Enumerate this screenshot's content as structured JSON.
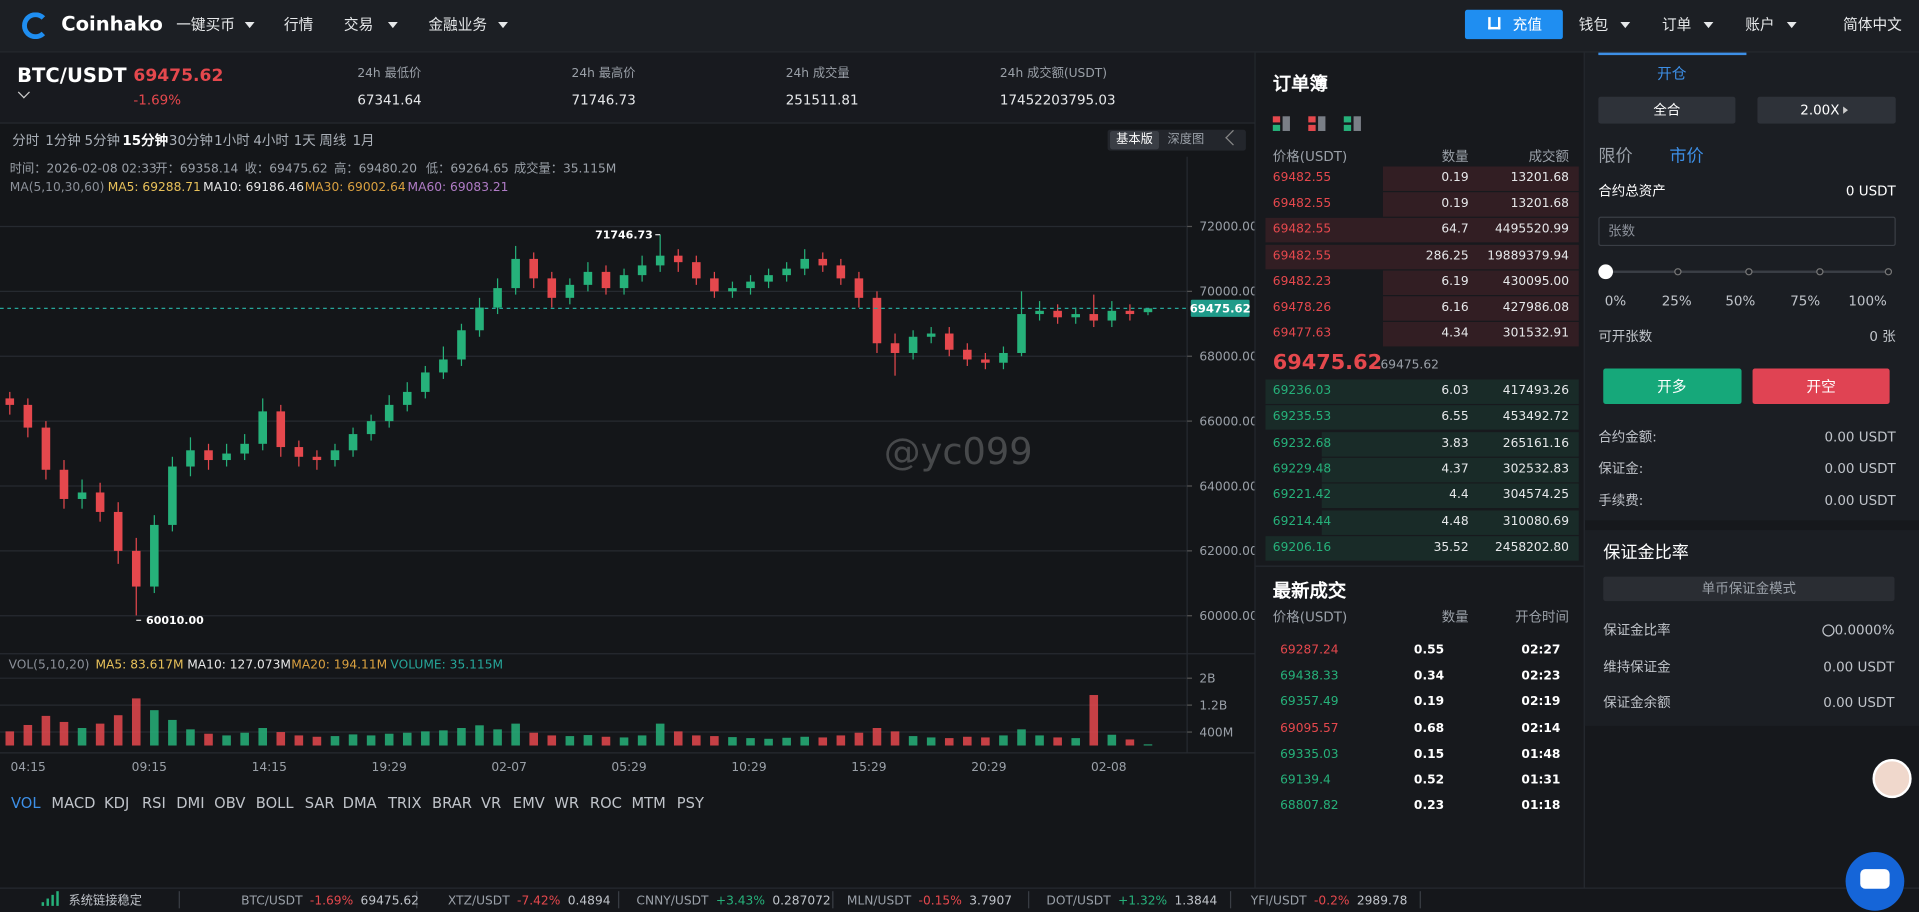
{
  "nav": {
    "brand": "Coinhako",
    "items": [
      "一键买币",
      "行情",
      "交易",
      "金融业务"
    ],
    "deposit": "充值",
    "right": [
      "钱包",
      "订单",
      "账户"
    ],
    "lang": "简体中文"
  },
  "ticker": {
    "pair": "BTC/USDT",
    "price": "69475.62",
    "change": "-1.69%",
    "stats": [
      {
        "label": "24h 最低价",
        "value": "67341.64"
      },
      {
        "label": "24h 最高价",
        "value": "71746.73"
      },
      {
        "label": "24h 成交量",
        "value": "251511.81"
      },
      {
        "label": "24h 成交额(USDT)",
        "value": "17452203795.03"
      }
    ]
  },
  "periods": [
    "分时",
    "1分钟",
    "5分钟",
    "15分钟",
    "30分钟",
    "1小时",
    "4小时",
    "1天",
    "周线",
    "1月"
  ],
  "active_period": 3,
  "views": [
    "基本版",
    "深度图"
  ],
  "info": [
    "时间：2026-02-08 02:33",
    "开：69358.14",
    "收：69475.62",
    "高：69480.20",
    "低：69264.65",
    "成交量：35.115M"
  ],
  "ma_legend": [
    {
      "text": "MA(5,10,30,60)",
      "color": "#8b9099"
    },
    {
      "text": "MA5: 69288.71",
      "color": "#e8c15a"
    },
    {
      "text": "MA10: 69186.46",
      "color": "#e8e8e8"
    },
    {
      "text": "MA30: 69002.64",
      "color": "#d9a040"
    },
    {
      "text": "MA60: 69083.21",
      "color": "#b07cc6"
    }
  ],
  "vol_legend": [
    {
      "text": "VOL(5,10,20)",
      "color": "#8b9099"
    },
    {
      "text": "MA5: 83.617M",
      "color": "#e8c15a"
    },
    {
      "text": "MA10: 127.073M",
      "color": "#e8e8e8"
    },
    {
      "text": "MA20: 194.11M",
      "color": "#d9a040"
    },
    {
      "text": "VOLUME: 35.115M",
      "color": "#26a69a"
    }
  ],
  "watermark": "@yc099",
  "kline": {
    "open": [
      66700,
      66500,
      65800,
      64500,
      63600,
      63800,
      63200,
      62000,
      60900,
      62800,
      64600,
      65100,
      64800,
      65000,
      65300,
      66300,
      65200,
      64900,
      64800,
      65100,
      65600,
      66000,
      66500,
      66900,
      67500,
      67900,
      68800,
      69500,
      70100,
      71000,
      70400,
      69800,
      70200,
      70600,
      70100,
      70500,
      70800,
      71100,
      70900,
      70400,
      70000,
      70100,
      70300,
      70500,
      70700,
      71000,
      70800,
      70400,
      69800,
      68400,
      68100,
      68600,
      68700,
      68200,
      67900,
      67800,
      68100,
      69300,
      69400,
      69200,
      69300,
      69100,
      69400,
      69358.14
    ],
    "high": [
      66900,
      66700,
      66000,
      64800,
      64200,
      64100,
      63500,
      62400,
      63100,
      64900,
      65500,
      65300,
      65300,
      65600,
      66700,
      66500,
      65400,
      65100,
      65300,
      65800,
      66200,
      66800,
      67200,
      67700,
      68300,
      69000,
      69800,
      70400,
      71400,
      71200,
      70600,
      70400,
      70900,
      70800,
      70700,
      71100,
      71746.73,
      71300,
      71100,
      70600,
      70300,
      70500,
      70700,
      70900,
      71300,
      71200,
      71000,
      70600,
      70000,
      68700,
      68800,
      68900,
      68900,
      68400,
      68100,
      68300,
      70000,
      69700,
      69600,
      69500,
      69900,
      69700,
      69600,
      69480.2
    ],
    "low": [
      66200,
      65500,
      64200,
      63300,
      63300,
      62900,
      61600,
      60010,
      60700,
      62600,
      64300,
      64500,
      64600,
      64800,
      65100,
      64900,
      64600,
      64500,
      64600,
      64900,
      65400,
      65800,
      66300,
      66700,
      67300,
      67700,
      68600,
      69300,
      69900,
      70100,
      69500,
      69600,
      70000,
      69900,
      69900,
      70300,
      70600,
      70600,
      70200,
      69800,
      69800,
      69900,
      70100,
      70300,
      70500,
      70600,
      70200,
      69500,
      68100,
      67400,
      67900,
      68400,
      68000,
      67700,
      67600,
      67600,
      68000,
      69100,
      69000,
      69000,
      68900,
      68900,
      69100,
      69264.65
    ],
    "close": [
      66500,
      65800,
      64500,
      63600,
      63800,
      63200,
      62000,
      60900,
      62800,
      64600,
      65100,
      64800,
      65000,
      65300,
      66300,
      65200,
      64900,
      64800,
      65100,
      65600,
      66000,
      66500,
      66900,
      67500,
      67900,
      68800,
      69500,
      70100,
      71000,
      70400,
      69800,
      70200,
      70600,
      70100,
      70500,
      70800,
      71100,
      70900,
      70400,
      70000,
      70100,
      70300,
      70500,
      70700,
      71000,
      70800,
      70400,
      69800,
      68400,
      68100,
      68600,
      68700,
      68200,
      67900,
      67800,
      68100,
      69300,
      69400,
      69200,
      69300,
      69100,
      69400,
      69300,
      69475.62
    ],
    "volume": [
      420,
      610,
      880,
      700,
      520,
      650,
      900,
      1400,
      1050,
      760,
      480,
      350,
      300,
      380,
      520,
      400,
      300,
      260,
      280,
      330,
      300,
      350,
      380,
      420,
      450,
      520,
      600,
      480,
      650,
      380,
      300,
      280,
      310,
      260,
      240,
      300,
      650,
      420,
      300,
      280,
      250,
      220,
      200,
      230,
      260,
      240,
      300,
      380,
      520,
      420,
      280,
      240,
      220,
      260,
      240,
      300,
      480,
      300,
      240,
      220,
      1500,
      320,
      180,
      35.115
    ],
    "ylim": [
      58981,
      74151
    ],
    "yticks": [
      {
        "value": 60000,
        "label": "60000.00"
      },
      {
        "value": 62000,
        "label": "62000.00"
      },
      {
        "value": 64000,
        "label": "64000.00"
      },
      {
        "value": 66000,
        "label": "66000.00"
      },
      {
        "value": 68000,
        "label": "68000.00"
      },
      {
        "value": 70000,
        "label": "70000.00"
      },
      {
        "value": 72000,
        "label": "72000.00"
      }
    ],
    "vylim": [
      0,
      2400
    ],
    "vticks": [
      {
        "value": 400,
        "label": "400M"
      },
      {
        "value": 1200,
        "label": "1.2B"
      },
      {
        "value": 2000,
        "label": "2B"
      }
    ],
    "xlabels": [
      "04:15",
      "09:15",
      "14:15",
      "19:29",
      "02-07",
      "05:29",
      "10:29",
      "15:29",
      "20:29",
      "02-08"
    ],
    "last_price": {
      "value": 69475.62,
      "label": "69475.62"
    },
    "max_label": "71746.73",
    "min_label": "60010.00",
    "up_color": "#26b17a",
    "down_color": "#e5484d"
  },
  "indicators": [
    "VOL",
    "MACD",
    "KDJ",
    "RSI",
    "DMI",
    "OBV",
    "BOLL",
    "SAR",
    "DMA",
    "TRIX",
    "BRAR",
    "VR",
    "EMV",
    "WR",
    "ROC",
    "MTM",
    "PSY"
  ],
  "active_indicator": 0,
  "orderbook": {
    "title": "订单簿",
    "headers": [
      "价格(USDT)",
      "数量",
      "成交额"
    ],
    "asks": [
      [
        "69482.55",
        "0.19",
        "13201.68"
      ],
      [
        "69482.55",
        "0.19",
        "13201.68"
      ],
      [
        "69482.55",
        "64.7",
        "4495520.99"
      ],
      [
        "69482.55",
        "286.25",
        "19889379.94"
      ],
      [
        "69482.23",
        "6.19",
        "430095.00"
      ],
      [
        "69478.26",
        "6.16",
        "427986.08"
      ],
      [
        "69477.63",
        "4.34",
        "301532.91"
      ]
    ],
    "last": "69475.62",
    "last_sub": "69475.62",
    "bids": [
      [
        "69236.03",
        "6.03",
        "417493.26"
      ],
      [
        "69235.53",
        "6.55",
        "453492.72"
      ],
      [
        "69232.68",
        "3.83",
        "265161.16"
      ],
      [
        "69229.48",
        "4.37",
        "302532.83"
      ],
      [
        "69221.42",
        "4.4",
        "304574.25"
      ],
      [
        "69214.44",
        "4.48",
        "310080.69"
      ],
      [
        "69206.16",
        "35.52",
        "2458202.80"
      ]
    ]
  },
  "trades": {
    "title": "最新成交",
    "headers": [
      "价格(USDT)",
      "数量",
      "开仓时间"
    ],
    "rows": [
      {
        "price": "69287.24",
        "qty": "0.55",
        "time": "02:27",
        "color": "#e5484d"
      },
      {
        "price": "69438.33",
        "qty": "0.34",
        "time": "02:23",
        "color": "#26b17a"
      },
      {
        "price": "69357.49",
        "qty": "0.19",
        "time": "02:19",
        "color": "#26b17a"
      },
      {
        "price": "69095.57",
        "qty": "0.68",
        "time": "02:14",
        "color": "#e5484d"
      },
      {
        "price": "69335.03",
        "qty": "0.15",
        "time": "01:48",
        "color": "#26b17a"
      },
      {
        "price": "69139.4",
        "qty": "0.52",
        "time": "01:31",
        "color": "#26b17a"
      },
      {
        "price": "68807.82",
        "qty": "0.23",
        "time": "01:18",
        "color": "#26b17a"
      }
    ]
  },
  "trade_form": {
    "tab": "开仓",
    "margin_mode": "全合",
    "leverage": "2.00X",
    "order_types": [
      "限价",
      "市价"
    ],
    "total_assets": {
      "label": "合约总资产",
      "value": "0 USDT"
    },
    "amount_placeholder": "张数",
    "slider": [
      "0%",
      "25%",
      "50%",
      "75%",
      "100%"
    ],
    "available": {
      "label": "可开张数",
      "value": "0 张"
    },
    "long": "开多",
    "short": "开空",
    "rows": [
      {
        "label": "合约金额:",
        "value": "0.00 USDT"
      },
      {
        "label": "保证金:",
        "value": "0.00 USDT"
      },
      {
        "label": "手续费:",
        "value": "0.00 USDT"
      }
    ]
  },
  "margin": {
    "title": "保证金比率",
    "mode": "单币保证金模式",
    "rows": [
      {
        "label": "保证金比率",
        "value": "0.0000%"
      },
      {
        "label": "维持保证金",
        "value": "0.00 USDT"
      },
      {
        "label": "保证金余额",
        "value": "0.00 USDT"
      }
    ]
  },
  "footer": {
    "status": "系统链接稳定",
    "tickers": [
      {
        "pair": "BTC/USDT",
        "change": "-1.69%",
        "price": "69475.62",
        "color": "#e5484d"
      },
      {
        "pair": "XTZ/USDT",
        "change": "-7.42%",
        "price": "0.4894",
        "color": "#e5484d"
      },
      {
        "pair": "CNNY/USDT",
        "change": "+3.43%",
        "price": "0.287072",
        "color": "#26b17a"
      },
      {
        "pair": "MLN/USDT",
        "change": "-0.15%",
        "price": "3.7907",
        "color": "#e5484d"
      },
      {
        "pair": "DOT/USDT",
        "change": "+1.32%",
        "price": "1.3844",
        "color": "#26b17a"
      },
      {
        "pair": "YFI/USDT",
        "change": "-0.2%",
        "price": "2989.78",
        "color": "#e5484d"
      }
    ]
  }
}
